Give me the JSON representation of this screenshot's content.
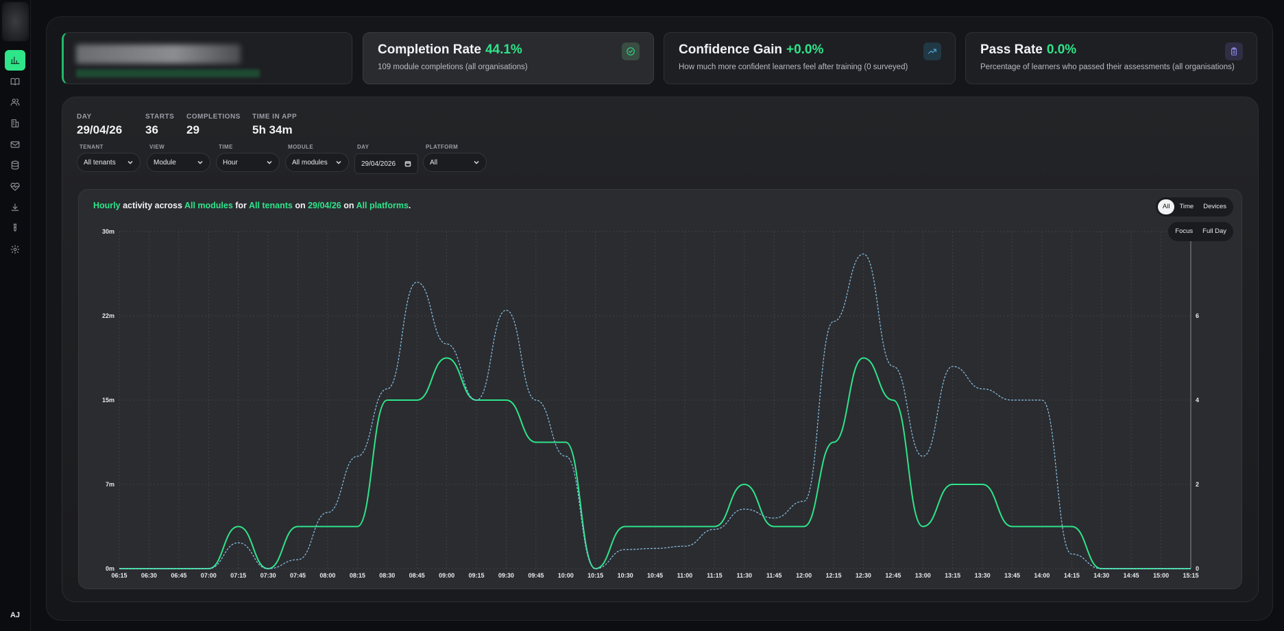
{
  "sidebar": {
    "items": [
      {
        "icon": "bar-chart-icon",
        "active": true
      },
      {
        "icon": "book-icon",
        "active": false
      },
      {
        "icon": "users-icon",
        "active": false
      },
      {
        "icon": "building-icon",
        "active": false
      },
      {
        "icon": "mail-icon",
        "active": false
      },
      {
        "icon": "database-icon",
        "active": false
      },
      {
        "icon": "heart-pulse-icon",
        "active": false
      },
      {
        "icon": "download-icon",
        "active": false
      },
      {
        "icon": "test-tube-icon",
        "active": false
      },
      {
        "icon": "settings-icon",
        "active": false
      }
    ],
    "avatar": "AJ"
  },
  "cards": [
    {
      "title": "Completion Rate",
      "value": "44.1%",
      "subtitle": "109 module completions (all organisations)",
      "icon": "check-circle-icon"
    },
    {
      "title": "Confidence Gain",
      "value": "+0.0%",
      "subtitle": "How much more confident learners feel after training (0 surveyed)",
      "icon": "trending-up-icon"
    },
    {
      "title": "Pass Rate",
      "value": "0.0%",
      "subtitle": "Percentage of learners who passed their assessments (all organisations)",
      "icon": "clipboard-icon"
    }
  ],
  "stats": [
    {
      "label": "DAY",
      "value": "29/04/26"
    },
    {
      "label": "STARTS",
      "value": "36"
    },
    {
      "label": "COMPLETIONS",
      "value": "29"
    },
    {
      "label": "TIME IN APP",
      "value": "5h 34m"
    }
  ],
  "filters": [
    {
      "label": "TENANT",
      "value": "All tenants"
    },
    {
      "label": "VIEW",
      "value": "Module"
    },
    {
      "label": "TIME",
      "value": "Hour"
    },
    {
      "label": "MODULE",
      "value": "All modules"
    },
    {
      "label": "DAY",
      "value": "29/04/2026"
    },
    {
      "label": "PLATFORM",
      "value": "All"
    }
  ],
  "caption": {
    "p1": "Hourly",
    "t1": " activity across ",
    "p2": "All modules",
    "t2": " for ",
    "p3": "All tenants",
    "t3": " on ",
    "p4": "29/04/26",
    "t4": " on ",
    "p5": "All platforms",
    "t5": "."
  },
  "toggles": {
    "group1": [
      {
        "label": "All",
        "on": true
      },
      {
        "label": "Time",
        "on": false
      },
      {
        "label": "Devices",
        "on": false
      }
    ],
    "group2": [
      {
        "label": "Focus",
        "on": false
      },
      {
        "label": "Full Day",
        "on": false
      }
    ]
  },
  "chart_data": {
    "type": "line",
    "x": [
      "06:15",
      "06:30",
      "06:45",
      "07:00",
      "07:15",
      "07:30",
      "07:45",
      "08:00",
      "08:15",
      "08:30",
      "08:45",
      "09:00",
      "09:15",
      "09:30",
      "09:45",
      "10:00",
      "10:15",
      "10:30",
      "10:45",
      "11:00",
      "11:15",
      "11:30",
      "11:45",
      "12:00",
      "12:15",
      "12:30",
      "12:45",
      "13:00",
      "13:15",
      "13:30",
      "13:45",
      "14:00",
      "14:15",
      "14:30",
      "14:45",
      "15:00",
      "15:15"
    ],
    "y_left_ticks": [
      "0m",
      "7m",
      "15m",
      "22m",
      "30m"
    ],
    "y_left_range": [
      0,
      30
    ],
    "y_right_ticks": [
      "0",
      "2",
      "4",
      "6"
    ],
    "y_right_range": [
      0,
      8
    ],
    "series": [
      {
        "axis": "right",
        "style": "solid",
        "color": "#2ee58a",
        "values": [
          0,
          0,
          0,
          0,
          1,
          0,
          1,
          1,
          1,
          4,
          4,
          5,
          4,
          4,
          3,
          3,
          0,
          1,
          1,
          1,
          1,
          2,
          1,
          1,
          3,
          5,
          4,
          1,
          2,
          2,
          1,
          1,
          1,
          0,
          0,
          0,
          0
        ]
      },
      {
        "axis": "left",
        "style": "dashed",
        "color": "#8ac6ea",
        "values": [
          0,
          0,
          0,
          0,
          2.3,
          0,
          0.8,
          5,
          10,
          16,
          25.5,
          20,
          15,
          23,
          15,
          10,
          0,
          1.7,
          1.8,
          2,
          3.5,
          5.3,
          4.5,
          6,
          22,
          28,
          18,
          10,
          18,
          16,
          15,
          15,
          1.3,
          0,
          0,
          0,
          0
        ]
      }
    ],
    "grid": true
  }
}
